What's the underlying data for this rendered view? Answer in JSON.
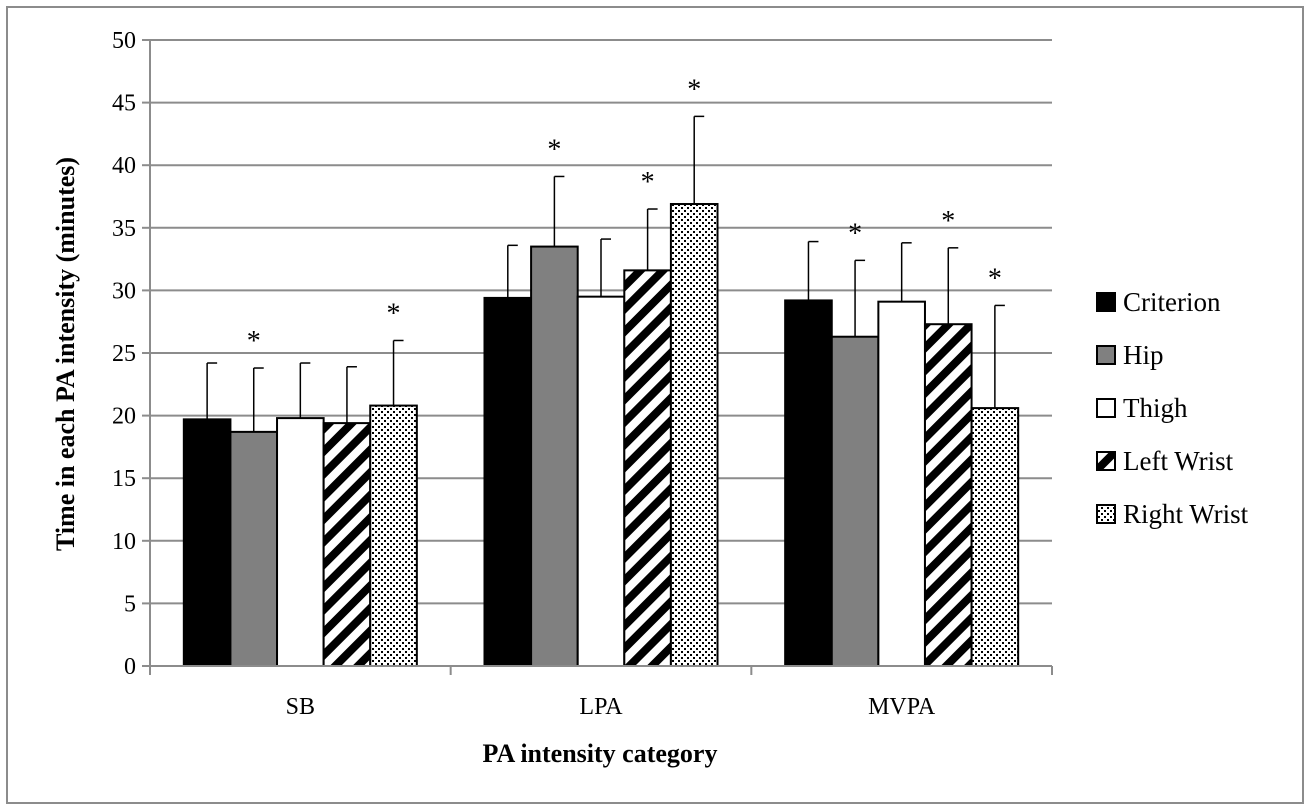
{
  "chart_data": {
    "type": "bar",
    "title": "",
    "xlabel": "PA intensity category",
    "ylabel": "Time in each PA intensity (minutes)",
    "ylim": [
      0,
      50
    ],
    "yticks": [
      0,
      5,
      10,
      15,
      20,
      25,
      30,
      35,
      40,
      45,
      50
    ],
    "grid": "horizontal",
    "legend_position": "right",
    "significance_marker": "*",
    "categories": [
      "SB",
      "LPA",
      "MVPA"
    ],
    "series": [
      {
        "name": "Criterion",
        "pattern": "solid-black",
        "values": [
          19.7,
          29.4,
          29.2
        ],
        "errors": [
          4.5,
          4.2,
          4.7
        ],
        "significant": [
          false,
          false,
          false
        ]
      },
      {
        "name": "Hip",
        "pattern": "solid-gray",
        "values": [
          18.7,
          33.5,
          26.3
        ],
        "errors": [
          5.1,
          5.6,
          6.1
        ],
        "significant": [
          true,
          true,
          true
        ]
      },
      {
        "name": "Thigh",
        "pattern": "white",
        "values": [
          19.8,
          29.5,
          29.1
        ],
        "errors": [
          4.4,
          4.6,
          4.7
        ],
        "significant": [
          false,
          false,
          false
        ]
      },
      {
        "name": "Left Wrist",
        "pattern": "diagonal",
        "values": [
          19.4,
          31.6,
          27.3
        ],
        "errors": [
          4.5,
          4.9,
          6.1
        ],
        "significant": [
          false,
          true,
          true
        ]
      },
      {
        "name": "Right Wrist",
        "pattern": "dots",
        "values": [
          20.8,
          36.9,
          20.6
        ],
        "errors": [
          5.2,
          7.0,
          8.2
        ],
        "significant": [
          true,
          true,
          true
        ]
      }
    ],
    "colors": {
      "solid-black": "#000000",
      "solid-gray": "#808080",
      "white": "#ffffff",
      "grid": "#8c8c8c",
      "border": "#8c8c8c"
    }
  }
}
